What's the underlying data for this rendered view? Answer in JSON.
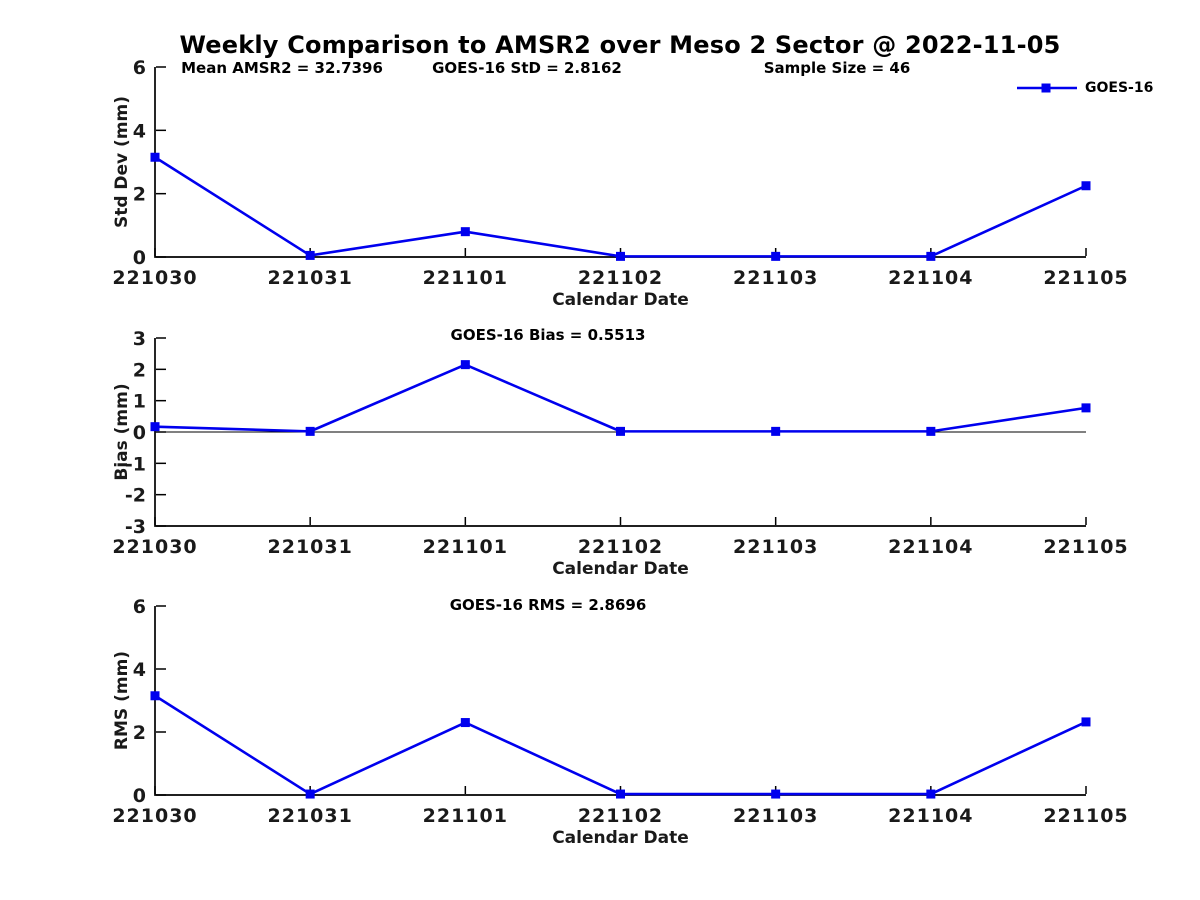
{
  "title": "Weekly Comparison to AMSR2 over Meso 2 Sector @ 2022-11-05",
  "legend": {
    "label": "GOES-16"
  },
  "colors": {
    "series": "#0000EE",
    "axis": "#000000",
    "tick_text": "#1a1a1a",
    "title_text": "#000000"
  },
  "chart_data": [
    {
      "type": "line",
      "annotations": [
        "Mean AMSR2 = 32.7396",
        "GOES-16 StD = 2.8162",
        "Sample Size = 46"
      ],
      "categories": [
        "221030",
        "221031",
        "221101",
        "221102",
        "221103",
        "221104",
        "221105"
      ],
      "series": [
        {
          "name": "GOES-16",
          "values": [
            3.15,
            0.05,
            0.8,
            0.02,
            0.02,
            0.02,
            2.25
          ]
        }
      ],
      "xlabel": "Calendar Date",
      "ylabel": "Std Dev (mm)",
      "ylim": [
        0,
        6
      ],
      "yticks": [
        0,
        2,
        4,
        6
      ],
      "zero_line": false,
      "grid": false,
      "legend_position": "top-right-outside",
      "marker": "square"
    },
    {
      "type": "line",
      "annotations": [
        "GOES-16 Bias  = 0.5513"
      ],
      "categories": [
        "221030",
        "221031",
        "221101",
        "221102",
        "221103",
        "221104",
        "221105"
      ],
      "series": [
        {
          "name": "GOES-16",
          "values": [
            0.17,
            0.02,
            2.15,
            0.02,
            0.02,
            0.02,
            0.77
          ]
        }
      ],
      "xlabel": "Calendar Date",
      "ylabel": "Bias (mm)",
      "ylim": [
        -3,
        3
      ],
      "yticks": [
        -3,
        -2,
        -1,
        0,
        1,
        2,
        3
      ],
      "zero_line": true,
      "grid": false,
      "marker": "square"
    },
    {
      "type": "line",
      "annotations": [
        "GOES-16 RMS = 2.8696"
      ],
      "categories": [
        "221030",
        "221031",
        "221101",
        "221102",
        "221103",
        "221104",
        "221105"
      ],
      "series": [
        {
          "name": "GOES-16",
          "values": [
            3.15,
            0.03,
            2.3,
            0.03,
            0.03,
            0.03,
            2.32
          ]
        }
      ],
      "xlabel": "Calendar Date",
      "ylabel": "RMS (mm)",
      "ylim": [
        0,
        6
      ],
      "yticks": [
        0,
        2,
        4,
        6
      ],
      "zero_line": false,
      "grid": false,
      "marker": "square"
    }
  ]
}
